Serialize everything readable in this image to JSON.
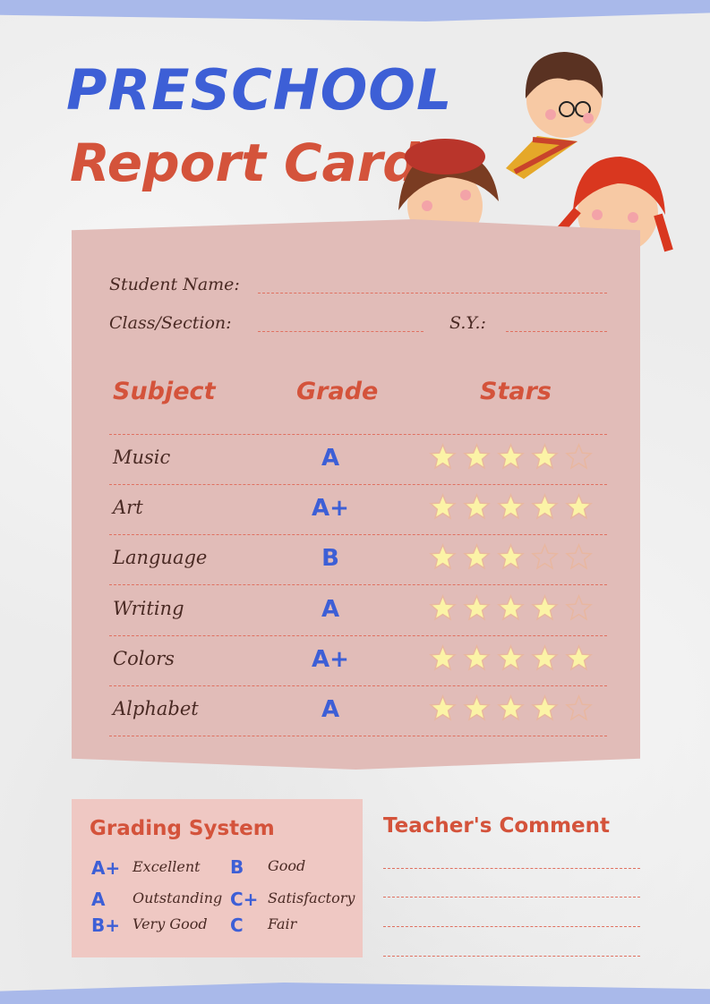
{
  "title": {
    "line1": "PRESCHOOL",
    "line2": "Report Card"
  },
  "fields": {
    "student_name": "Student Name:",
    "class_section": "Class/Section:",
    "school_year": "S.Y.:"
  },
  "table": {
    "headers": [
      "Subject",
      "Grade",
      "Stars"
    ],
    "max_stars": 5,
    "rows": [
      {
        "subject": "Music",
        "grade": "A",
        "stars": 4
      },
      {
        "subject": "Art",
        "grade": "A+",
        "stars": 5
      },
      {
        "subject": "Language",
        "grade": "B",
        "stars": 3
      },
      {
        "subject": "Writing",
        "grade": "A",
        "stars": 4
      },
      {
        "subject": "Colors",
        "grade": "A+",
        "stars": 5
      },
      {
        "subject": "Alphabet",
        "grade": "A",
        "stars": 4
      }
    ]
  },
  "grading": {
    "title": "Grading System",
    "items": [
      {
        "code": "A+",
        "desc": "Excellent"
      },
      {
        "code": "A",
        "desc": "Outstanding"
      },
      {
        "code": "B+",
        "desc": "Very Good"
      },
      {
        "code": "B",
        "desc": "Good"
      },
      {
        "code": "C+",
        "desc": "Satisfactory"
      },
      {
        "code": "C",
        "desc": "Fair"
      }
    ]
  },
  "comment": {
    "title": "Teacher's Comment"
  },
  "colors": {
    "blue": "#3d5fd6",
    "red": "#d4533b",
    "panel": "#e1bcb8",
    "star_fill": "#fbf3a6",
    "star_stroke": "#e8b7a0"
  }
}
